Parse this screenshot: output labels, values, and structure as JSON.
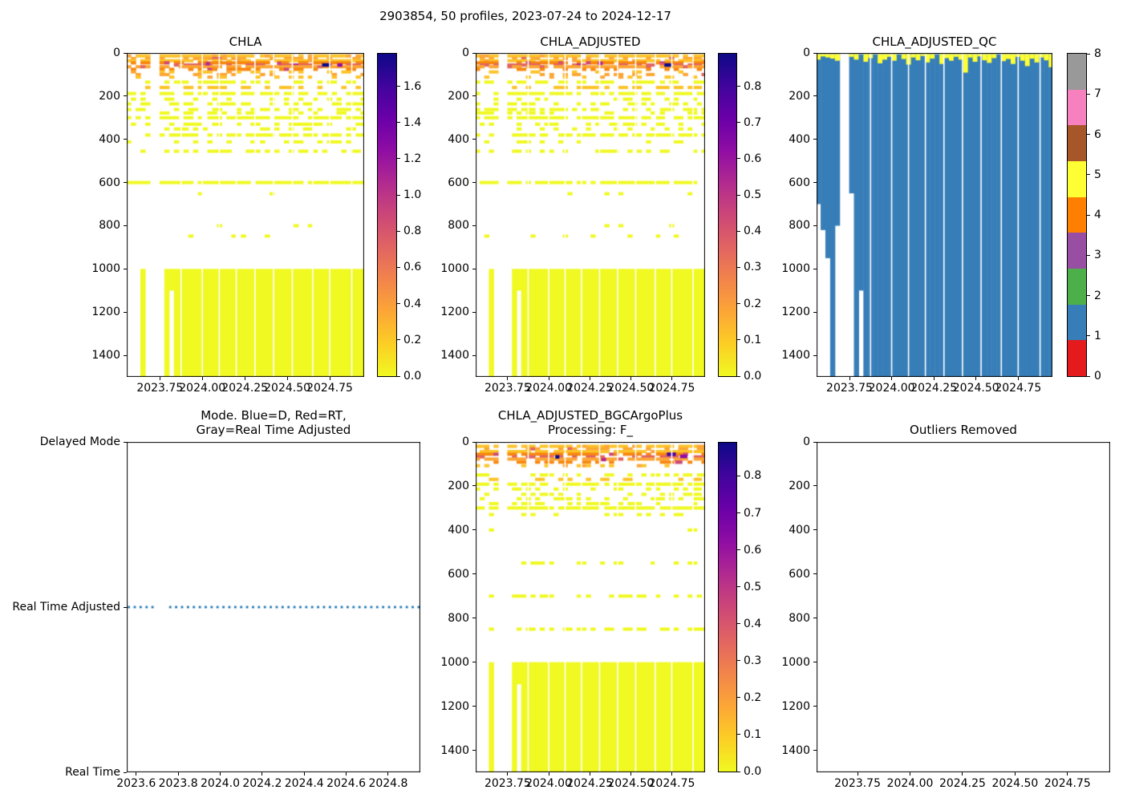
{
  "figure": {
    "title": "2903854, 50 profiles, 2023-07-24 to 2024-12-17",
    "background": "#ffffff"
  },
  "colors": {
    "axis": "#000000",
    "deep_block": "#f0f921",
    "mode_dot": "#1f77b4",
    "qc_bar": "#377eb8",
    "qc_cap": "#f2ed33",
    "plasma": [
      "#0d0887",
      "#41049d",
      "#6a00a8",
      "#8f0da4",
      "#b12a90",
      "#cc4778",
      "#e16462",
      "#f2844b",
      "#fca636",
      "#fcce25",
      "#f0f921"
    ],
    "palette": {
      "y": "#f0f921",
      "g": "#fdc328",
      "o": "#fca636",
      "d": "#f8870e",
      "s": "#e16462",
      "p": "#cc4778",
      "m": "#b12a90",
      "v": "#8f0da4",
      "n": "#46039f",
      "k": "#0d0887"
    }
  },
  "profiles": {
    "count": 50,
    "t_start": 2023.565,
    "t_end": 2024.945,
    "max_depth": [
      700,
      820,
      950,
      1500,
      800,
      null,
      null,
      650,
      1500,
      1100,
      1500,
      1500,
      1500,
      1500,
      1500,
      1500,
      1500,
      1500,
      1500,
      1500,
      1500,
      1500,
      1500,
      1500,
      1500,
      1500,
      1500,
      1500,
      1500,
      1500,
      1500,
      1500,
      1500,
      1500,
      1500,
      1500,
      1500,
      1500,
      1500,
      1500,
      1500,
      1500,
      1500,
      1500,
      1500,
      1500,
      1500,
      1500,
      1500,
      1500
    ],
    "qc_yellow_cap": [
      25,
      10,
      15,
      20,
      30,
      null,
      null,
      12,
      25,
      0,
      35,
      18,
      0,
      42,
      25,
      12,
      30,
      0,
      22,
      48,
      15,
      28,
      8,
      38,
      20,
      0,
      45,
      18,
      30,
      12,
      25,
      85,
      15,
      35,
      10,
      28,
      40,
      18,
      0,
      32,
      22,
      45,
      12,
      30,
      55,
      20,
      38,
      15,
      28,
      60
    ]
  },
  "separators": [
    2023.875,
    2024.0,
    2024.1,
    2024.2,
    2024.31,
    2024.42,
    2024.53,
    2024.65,
    2024.75,
    2024.88
  ],
  "chart_data": [
    {
      "id": "chla",
      "type": "heatmap",
      "title": "CHLA",
      "xlim": [
        2023.555,
        2024.953
      ],
      "ylim": [
        0,
        1500
      ],
      "x_tick_labels": [
        "2023.75",
        "2024.00",
        "2024.25",
        "2024.50",
        "2024.75"
      ],
      "x_tick_values": [
        2023.75,
        2024.0,
        2024.25,
        2024.5,
        2024.75
      ],
      "y_tick_labels": [
        "0",
        "200",
        "400",
        "600",
        "800",
        "1000",
        "1200",
        "1400"
      ],
      "y_tick_values": [
        0,
        200,
        400,
        600,
        800,
        1000,
        1200,
        1400
      ],
      "seed": 7,
      "deep_block_top": 1000,
      "rows": [
        [
          14,
          "g",
          0.85
        ],
        [
          26,
          "o",
          0.5
        ],
        [
          36,
          "g",
          0.9
        ],
        [
          46,
          "d",
          0.72
        ],
        [
          56,
          "s",
          0.5
        ],
        [
          64,
          "o",
          0.85
        ],
        [
          76,
          "d",
          0.42
        ],
        [
          88,
          "g",
          0.34
        ],
        [
          100,
          "o",
          0.3
        ],
        [
          112,
          "g",
          0.22
        ],
        [
          135,
          "y",
          0.5
        ],
        [
          160,
          "g",
          0.42
        ],
        [
          188,
          "y",
          0.72
        ],
        [
          214,
          "y",
          0.3
        ],
        [
          236,
          "y",
          0.44
        ],
        [
          262,
          "y",
          0.5
        ],
        [
          278,
          "y",
          0.32
        ],
        [
          300,
          "y",
          0.8
        ],
        [
          330,
          "y",
          0.4
        ],
        [
          352,
          "y",
          0.3
        ],
        [
          380,
          "y",
          0.72
        ],
        [
          412,
          "y",
          0.28
        ],
        [
          455,
          "y",
          0.45
        ],
        [
          600,
          "y",
          0.88
        ],
        [
          652,
          "y",
          0.05
        ],
        [
          800,
          "y",
          0.05
        ],
        [
          848,
          "y",
          0.16
        ]
      ],
      "specials": [
        [
          56,
          2024.705,
          2024.755,
          "k"
        ],
        [
          56,
          2024.795,
          2024.825,
          "v"
        ],
        [
          50,
          2024.02,
          2024.045,
          "m"
        ],
        [
          48,
          2024.44,
          2024.465,
          "p"
        ]
      ],
      "colorbar": {
        "kind": "continuous",
        "vmin": 0,
        "vmax": 1.78,
        "tick_labels": [
          "0.0",
          "0.2",
          "0.4",
          "0.6",
          "0.8",
          "1.0",
          "1.2",
          "1.4",
          "1.6"
        ],
        "tick_values": [
          0,
          0.2,
          0.4,
          0.6,
          0.8,
          1.0,
          1.2,
          1.4,
          1.6
        ]
      }
    },
    {
      "id": "chla_adj",
      "type": "heatmap",
      "title": "CHLA_ADJUSTED",
      "xlim": [
        2023.555,
        2024.953
      ],
      "ylim": [
        0,
        1500
      ],
      "x_tick_labels": [
        "2023.75",
        "2024.00",
        "2024.25",
        "2024.50",
        "2024.75"
      ],
      "x_tick_values": [
        2023.75,
        2024.0,
        2024.25,
        2024.5,
        2024.75
      ],
      "y_tick_labels": [
        "0",
        "200",
        "400",
        "600",
        "800",
        "1000",
        "1200",
        "1400"
      ],
      "y_tick_values": [
        0,
        200,
        400,
        600,
        800,
        1000,
        1200,
        1400
      ],
      "seed": 13,
      "deep_block_top": 1000,
      "rows": [
        [
          14,
          "g",
          0.85
        ],
        [
          26,
          "o",
          0.5
        ],
        [
          36,
          "g",
          0.9
        ],
        [
          46,
          "d",
          0.72
        ],
        [
          56,
          "s",
          0.5
        ],
        [
          64,
          "o",
          0.85
        ],
        [
          76,
          "d",
          0.42
        ],
        [
          88,
          "g",
          0.34
        ],
        [
          100,
          "o",
          0.3
        ],
        [
          112,
          "g",
          0.22
        ],
        [
          135,
          "y",
          0.5
        ],
        [
          160,
          "g",
          0.42
        ],
        [
          188,
          "y",
          0.72
        ],
        [
          214,
          "y",
          0.3
        ],
        [
          236,
          "y",
          0.44
        ],
        [
          262,
          "y",
          0.5
        ],
        [
          278,
          "y",
          0.32
        ],
        [
          300,
          "y",
          0.8
        ],
        [
          330,
          "y",
          0.4
        ],
        [
          352,
          "y",
          0.3
        ],
        [
          380,
          "y",
          0.72
        ],
        [
          412,
          "y",
          0.28
        ],
        [
          455,
          "y",
          0.45
        ],
        [
          600,
          "y",
          0.88
        ],
        [
          652,
          "y",
          0.05
        ],
        [
          800,
          "y",
          0.05
        ],
        [
          848,
          "y",
          0.16
        ]
      ],
      "specials": [
        [
          56,
          2024.705,
          2024.75,
          "k"
        ],
        [
          48,
          2024.3,
          2024.33,
          "m"
        ]
      ],
      "colorbar": {
        "kind": "continuous",
        "vmin": 0,
        "vmax": 0.89,
        "tick_labels": [
          "0.0",
          "0.1",
          "0.2",
          "0.3",
          "0.4",
          "0.5",
          "0.6",
          "0.7",
          "0.8"
        ],
        "tick_values": [
          0,
          0.1,
          0.2,
          0.3,
          0.4,
          0.5,
          0.6,
          0.7,
          0.8
        ]
      }
    },
    {
      "id": "qc",
      "type": "qc",
      "title": "CHLA_ADJUSTED_QC",
      "xlim": [
        2023.555,
        2024.953
      ],
      "ylim": [
        0,
        1500
      ],
      "x_tick_labels": [
        "2023.75",
        "2024.00",
        "2024.25",
        "2024.50",
        "2024.75"
      ],
      "x_tick_values": [
        2023.75,
        2024.0,
        2024.25,
        2024.5,
        2024.75
      ],
      "y_tick_labels": [
        "0",
        "200",
        "400",
        "600",
        "800",
        "1000",
        "1200",
        "1400"
      ],
      "y_tick_values": [
        0,
        200,
        400,
        600,
        800,
        1000,
        1200,
        1400
      ],
      "colorbar": {
        "kind": "discrete",
        "tick_labels": [
          "0",
          "1",
          "2",
          "3",
          "4",
          "5",
          "6",
          "7",
          "8"
        ],
        "tick_values": [
          0,
          1,
          2,
          3,
          4,
          5,
          6,
          7,
          8
        ],
        "colors": [
          "#e41a1c",
          "#377eb8",
          "#4daf4a",
          "#984ea3",
          "#ff7f00",
          "#ffff33",
          "#a65628",
          "#f781bf",
          "#999999"
        ]
      }
    },
    {
      "id": "mode",
      "type": "mode",
      "title": "Mode. Blue=D, Red=RT,\nGray=Real Time Adjusted",
      "xlim": [
        2023.555,
        2024.953
      ],
      "x_tick_labels": [
        "2023.6",
        "2023.8",
        "2024.0",
        "2024.2",
        "2024.4",
        "2024.6",
        "2024.8"
      ],
      "x_tick_values": [
        2023.6,
        2023.8,
        2024.0,
        2024.2,
        2024.4,
        2024.6,
        2024.8
      ],
      "y_categories": [
        "Delayed Mode",
        "Real Time Adjusted",
        "Real Time"
      ],
      "line_category": "Real Time Adjusted"
    },
    {
      "id": "bgc",
      "type": "heatmap",
      "title": "CHLA_ADJUSTED_BGCArgoPlus\nProcessing: F_",
      "xlim": [
        2023.555,
        2024.953
      ],
      "ylim": [
        0,
        1500
      ],
      "x_tick_labels": [
        "2023.75",
        "2024.00",
        "2024.25",
        "2024.50",
        "2024.75"
      ],
      "x_tick_values": [
        2023.75,
        2024.0,
        2024.25,
        2024.5,
        2024.75
      ],
      "y_tick_labels": [
        "0",
        "200",
        "400",
        "600",
        "800",
        "1000",
        "1200",
        "1400"
      ],
      "y_tick_values": [
        0,
        200,
        400,
        600,
        800,
        1000,
        1200,
        1400
      ],
      "seed": 21,
      "deep_block_top": 1000,
      "rows": [
        [
          20,
          "g",
          0.8
        ],
        [
          32,
          "o",
          0.55
        ],
        [
          44,
          "g",
          0.85
        ],
        [
          56,
          "d",
          0.7
        ],
        [
          68,
          "s",
          0.5
        ],
        [
          78,
          "o",
          0.8
        ],
        [
          92,
          "d",
          0.4
        ],
        [
          108,
          "g",
          0.3
        ],
        [
          150,
          "y",
          0.45
        ],
        [
          170,
          "g",
          0.35
        ],
        [
          192,
          "y",
          0.78
        ],
        [
          214,
          "y",
          0.35
        ],
        [
          238,
          "y",
          0.4
        ],
        [
          258,
          "y",
          0.35
        ],
        [
          280,
          "y",
          0.42
        ],
        [
          300,
          "y",
          0.8
        ],
        [
          330,
          "y",
          0.36
        ],
        [
          400,
          "y",
          0.12
        ],
        [
          550,
          "y",
          0.3
        ],
        [
          700,
          "y",
          0.45
        ],
        [
          850,
          "y",
          0.62
        ]
      ],
      "specials": [
        [
          68,
          2024.04,
          2024.065,
          "k"
        ],
        [
          56,
          2024.72,
          2024.775,
          "n"
        ],
        [
          66,
          2024.8,
          2024.845,
          "v"
        ],
        [
          92,
          2024.77,
          2024.815,
          "p"
        ],
        [
          80,
          2024.32,
          2024.35,
          "m"
        ]
      ],
      "colorbar": {
        "kind": "continuous",
        "vmin": 0,
        "vmax": 0.89,
        "tick_labels": [
          "0.0",
          "0.1",
          "0.2",
          "0.3",
          "0.4",
          "0.5",
          "0.6",
          "0.7",
          "0.8"
        ],
        "tick_values": [
          0,
          0.1,
          0.2,
          0.3,
          0.4,
          0.5,
          0.6,
          0.7,
          0.8
        ]
      }
    },
    {
      "id": "out",
      "type": "empty",
      "title": "Outliers Removed",
      "xlim": [
        2023.555,
        2024.953
      ],
      "ylim": [
        0,
        1500
      ],
      "x_tick_labels": [
        "2023.75",
        "2024.00",
        "2024.25",
        "2024.50",
        "2024.75"
      ],
      "x_tick_values": [
        2023.75,
        2024.0,
        2024.25,
        2024.5,
        2024.75
      ],
      "y_tick_labels": [
        "0",
        "200",
        "400",
        "600",
        "800",
        "1000",
        "1200",
        "1400"
      ],
      "y_tick_values": [
        0,
        200,
        400,
        600,
        800,
        1000,
        1200,
        1400
      ]
    }
  ]
}
